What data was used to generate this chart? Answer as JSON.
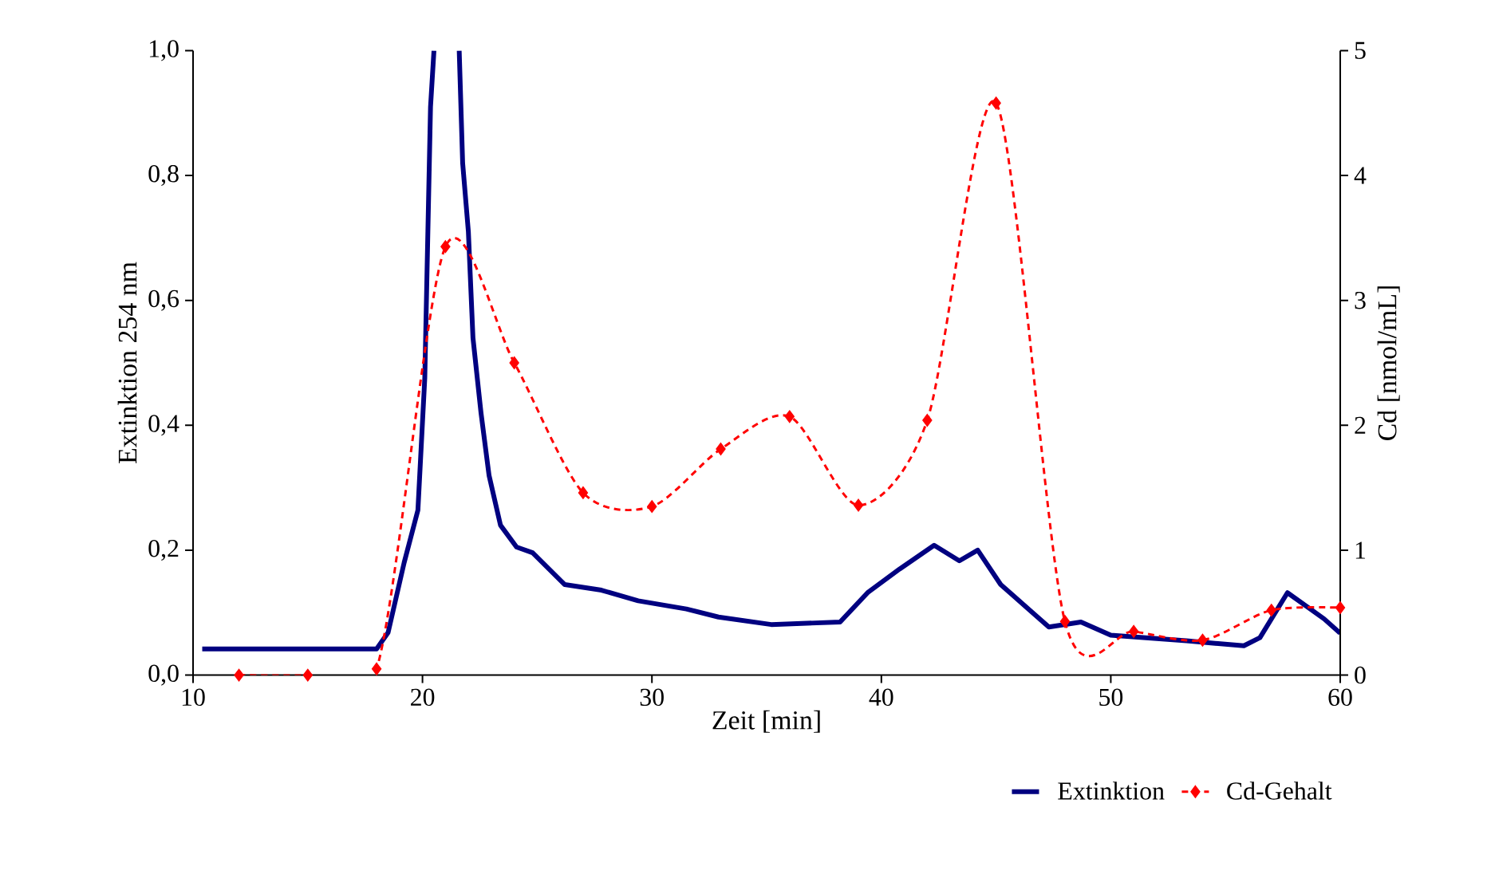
{
  "chart_data": {
    "type": "line",
    "xlabel": "Zeit [min]",
    "ylabel": "Extinktion 254 nm",
    "y2label": "Cd [nmol/mL]",
    "xlim": [
      10,
      60
    ],
    "xticks": [
      10,
      20,
      30,
      40,
      50,
      60
    ],
    "ylim": [
      0,
      1
    ],
    "yticks": [
      {
        "value": 0,
        "label": "0,0"
      },
      {
        "value": 0.2,
        "label": "0,2"
      },
      {
        "value": 0.4,
        "label": "0,4"
      },
      {
        "value": 0.6,
        "label": "0,6"
      },
      {
        "value": 0.8,
        "label": "0,8"
      },
      {
        "value": 1,
        "label": "1,0"
      }
    ],
    "y2lim": [
      0,
      5
    ],
    "y2ticks": [
      0,
      1,
      2,
      3,
      4,
      5
    ],
    "legend": "bottom",
    "series": [
      {
        "name": "Extinktion",
        "color": "#000080",
        "marker": "none",
        "line_style": "solid",
        "x": [
          10.4,
          18.0,
          18.5,
          19.2,
          19.8,
          20.1,
          20.35,
          20.5,
          21.0,
          21.6,
          21.75,
          22.0,
          22.2,
          22.55,
          22.9,
          23.4,
          24.1,
          24.8,
          26.2,
          27.8,
          29.4,
          31.5,
          32.9,
          35.2,
          38.2,
          39.4,
          40.8,
          42.3,
          43.4,
          44.2,
          45.2,
          47.3,
          48.7,
          50.0,
          53.3,
          55.8,
          56.5,
          57.7,
          59.3,
          60.0
        ],
        "values": [
          0.042,
          0.042,
          0.068,
          0.18,
          0.264,
          0.476,
          0.91,
          1.0,
          null,
          1.0,
          0.82,
          0.71,
          0.54,
          0.42,
          0.32,
          0.24,
          0.205,
          0.196,
          0.145,
          0.136,
          0.119,
          0.106,
          0.093,
          0.081,
          0.085,
          0.132,
          0.17,
          0.208,
          0.183,
          0.2,
          0.145,
          0.077,
          0.085,
          0.064,
          0.055,
          0.047,
          0.06,
          0.132,
          0.09,
          0.067
        ]
      },
      {
        "name": "Cd-Gehalt",
        "color": "#ff0000",
        "marker": "diamond",
        "line_style": "dashed",
        "axis": "y2",
        "x": [
          12,
          15,
          18,
          21,
          24,
          27,
          30,
          33,
          36,
          39,
          42,
          45,
          48,
          51,
          54,
          57,
          60
        ],
        "values": [
          0,
          0,
          0.05,
          3.43,
          2.5,
          1.46,
          1.35,
          1.81,
          2.07,
          1.36,
          2.04,
          4.58,
          0.43,
          0.35,
          0.28,
          0.52,
          0.54
        ]
      }
    ]
  }
}
